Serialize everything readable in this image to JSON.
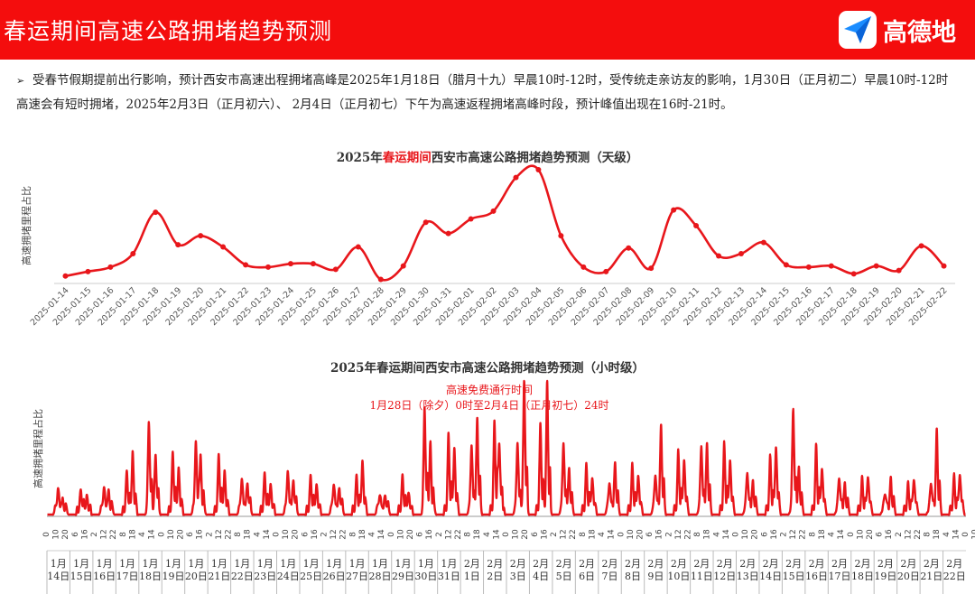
{
  "header": {
    "title": "春运期间高速公路拥堵趋势预测",
    "logo_text": "高德地",
    "accent": "#f40d0d",
    "logo_icon": "paper-plane-icon"
  },
  "note": {
    "bullet": "➢",
    "text": "受春节假期提前出行影响，预计西安市高速出程拥堵高峰是2025年1月18日（腊月十九）早晨10时-12时，受传统走亲访友的影响，1月30日（正月初二）早晨10时-12时高速会有短时拥堵，2025年2月3日（正月初六）、 2月4日（正月初七）下午为高速返程拥堵高峰时段，预计峰值出现在16时-21时。"
  },
  "chart_data": [
    {
      "type": "line",
      "title_parts": [
        "2025年",
        "春运期间",
        "西安市高速公路拥堵趋势预测（天级）"
      ],
      "ylabel": "高速拥堵里程占比",
      "color": "#e8161b",
      "categories": [
        "2025-01-14",
        "2025-01-15",
        "2025-01-16",
        "2025-01-17",
        "2025-01-18",
        "2025-01-19",
        "2025-01-20",
        "2025-01-21",
        "2025-01-22",
        "2025-01-23",
        "2025-01-24",
        "2025-01-25",
        "2025-01-26",
        "2025-01-27",
        "2025-01-28",
        "2025-01-29",
        "2025-01-30",
        "2025-01-31",
        "2025-02-01",
        "2025-02-02",
        "2025-02-03",
        "2025-02-04",
        "2025-02-05",
        "2025-02-06",
        "2025-02-07",
        "2025-02-08",
        "2025-02-09",
        "2025-02-10",
        "2025-02-11",
        "2025-02-12",
        "2025-02-13",
        "2025-02-14",
        "2025-02-15",
        "2025-02-16",
        "2025-02-17",
        "2025-02-18",
        "2025-02-19",
        "2025-02-20",
        "2025-02-21",
        "2025-02-22"
      ],
      "values": [
        5,
        9,
        13,
        25,
        62,
        33,
        41,
        31,
        15,
        13,
        16,
        16,
        11,
        31,
        2,
        14,
        53,
        43,
        56,
        63,
        93,
        100,
        41,
        13,
        9,
        30,
        12,
        64,
        50,
        23,
        25,
        35,
        15,
        13,
        14,
        7,
        14,
        10,
        32,
        14
      ],
      "ylim": [
        0,
        100
      ],
      "grid": false
    },
    {
      "type": "line",
      "title": "2025年春运期间西安市高速公路拥堵趋势预测（小时级）",
      "ylabel": "高速拥堵里程占比",
      "color": "#e8161b",
      "annotation": [
        "高速免费通行时间",
        "1月28日（除夕）0时至2月4日（正月初七）24时"
      ],
      "hour_labels": [
        "0",
        "10",
        "20",
        "6",
        "16",
        "2",
        "12",
        "22",
        "8",
        "18",
        "4",
        "14",
        "0",
        "10",
        "20",
        "6",
        "16",
        "2",
        "12",
        "22",
        "8",
        "18",
        "4",
        "14",
        "0",
        "10",
        "20",
        "6",
        "16",
        "2",
        "12",
        "22",
        "8",
        "18",
        "4",
        "14",
        "0",
        "10",
        "20",
        "6",
        "16",
        "2",
        "12",
        "22",
        "8",
        "18",
        "4",
        "14",
        "0",
        "10",
        "20",
        "6",
        "16",
        "2",
        "12",
        "22",
        "8",
        "18",
        "4",
        "14",
        "0",
        "10",
        "20",
        "6",
        "16",
        "2",
        "12",
        "22",
        "8",
        "18",
        "4",
        "14",
        "0",
        "10",
        "20",
        "6",
        "16",
        "2",
        "12",
        "22",
        "8",
        "18",
        "4",
        "14",
        "0",
        "10",
        "20",
        "6",
        "16",
        "2",
        "12",
        "22",
        "8",
        "18",
        "4",
        "14",
        "0",
        "10"
      ],
      "day_labels": [
        "1月14日",
        "1月15日",
        "1月16日",
        "1月17日",
        "1月18日",
        "1月19日",
        "1月20日",
        "1月21日",
        "1月22日",
        "1月23日",
        "1月24日",
        "1月25日",
        "1月26日",
        "1月27日",
        "1月28日",
        "1月29日",
        "1月30日",
        "1月31日",
        "2月1日",
        "2月2日",
        "2月3日",
        "2月4日",
        "2月5日",
        "2月6日",
        "2月7日",
        "2月8日",
        "2月9日",
        "2月10日",
        "2月11日",
        "2月12日",
        "2月13日",
        "2月14日",
        "2月15日",
        "2月16日",
        "2月17日",
        "2月18日",
        "2月19日",
        "2月20日",
        "2月21日",
        "2月22日"
      ],
      "daily_peaks": [
        [
          [
            11,
            16
          ],
          [
            16,
            6
          ]
        ],
        [
          [
            11,
            14
          ],
          [
            17,
            9
          ]
        ],
        [
          [
            11,
            17
          ],
          [
            16,
            12
          ]
        ],
        [
          [
            11,
            28
          ],
          [
            17,
            42
          ]
        ],
        [
          [
            10,
            68
          ],
          [
            17,
            42
          ]
        ],
        [
          [
            11,
            42
          ],
          [
            17,
            30
          ]
        ],
        [
          [
            11,
            52
          ],
          [
            16,
            38
          ]
        ],
        [
          [
            11,
            40
          ],
          [
            17,
            28
          ]
        ],
        [
          [
            11,
            24
          ],
          [
            17,
            20
          ]
        ],
        [
          [
            11,
            26
          ],
          [
            17,
            18
          ]
        ],
        [
          [
            11,
            30
          ],
          [
            17,
            22
          ]
        ],
        [
          [
            11,
            24
          ],
          [
            17,
            18
          ]
        ],
        [
          [
            11,
            20
          ],
          [
            17,
            16
          ]
        ],
        [
          [
            11,
            24
          ],
          [
            17,
            36
          ]
        ],
        [
          [
            11,
            12
          ],
          [
            17,
            10
          ]
        ],
        [
          [
            11,
            24
          ],
          [
            17,
            12
          ]
        ],
        [
          [
            10,
            78
          ],
          [
            16,
            48
          ]
        ],
        [
          [
            11,
            55
          ],
          [
            17,
            46
          ]
        ],
        [
          [
            11,
            50
          ],
          [
            17,
            68
          ]
        ],
        [
          [
            11,
            64
          ],
          [
            16,
            52
          ]
        ],
        [
          [
            11,
            52
          ],
          [
            18,
            100
          ]
        ],
        [
          [
            11,
            62
          ],
          [
            18,
            94
          ]
        ],
        [
          [
            11,
            52
          ],
          [
            17,
            30
          ]
        ],
        [
          [
            11,
            32
          ],
          [
            17,
            24
          ]
        ],
        [
          [
            11,
            22
          ],
          [
            17,
            34
          ]
        ],
        [
          [
            11,
            32
          ],
          [
            17,
            26
          ]
        ],
        [
          [
            11,
            28
          ],
          [
            17,
            62
          ]
        ],
        [
          [
            11,
            42
          ],
          [
            17,
            38
          ]
        ],
        [
          [
            11,
            50
          ],
          [
            17,
            48
          ]
        ],
        [
          [
            11,
            48
          ],
          [
            17,
            38
          ]
        ],
        [
          [
            11,
            30
          ],
          [
            17,
            20
          ]
        ],
        [
          [
            11,
            38
          ],
          [
            17,
            48
          ]
        ],
        [
          [
            11,
            78
          ],
          [
            17,
            30
          ]
        ],
        [
          [
            11,
            46
          ],
          [
            17,
            32
          ]
        ],
        [
          [
            11,
            26
          ],
          [
            17,
            18
          ]
        ],
        [
          [
            11,
            22
          ],
          [
            17,
            26
          ]
        ],
        [
          [
            11,
            14
          ],
          [
            17,
            22
          ]
        ],
        [
          [
            11,
            18
          ],
          [
            17,
            24
          ]
        ],
        [
          [
            11,
            22
          ],
          [
            17,
            58
          ]
        ],
        [
          [
            11,
            24
          ],
          [
            17,
            28
          ]
        ]
      ]
    }
  ]
}
